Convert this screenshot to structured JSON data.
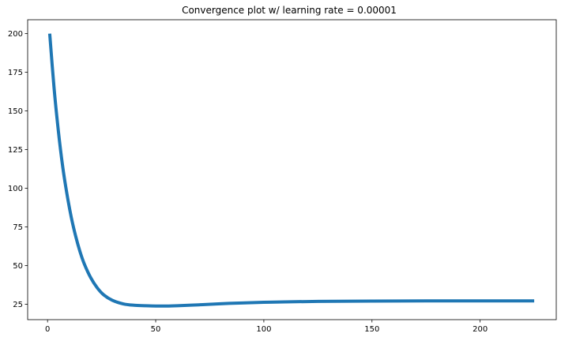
{
  "chart_data": {
    "type": "line",
    "title": "Convergence plot w/ learning rate = 0.00001",
    "xlabel": "",
    "ylabel": "",
    "xlim": [
      -9.2,
      235.2
    ],
    "ylim": [
      15.0,
      209.0
    ],
    "xticks": [
      0,
      50,
      100,
      150,
      200
    ],
    "yticks": [
      25,
      50,
      75,
      100,
      125,
      150,
      175,
      200
    ],
    "grid": false,
    "legend": "none",
    "series": [
      {
        "color": "#1f77b4",
        "x": [
          1,
          3,
          5,
          7,
          9,
          11,
          13,
          15,
          17,
          20,
          23,
          26,
          30,
          35,
          40,
          45,
          50,
          55,
          60,
          70,
          80,
          90,
          100,
          110,
          125,
          150,
          175,
          200,
          225
        ],
        "y": [
          200,
          165,
          137,
          114,
          96,
          81,
          69,
          59,
          51,
          42,
          35.5,
          31,
          27.5,
          25.2,
          24.3,
          24.0,
          23.8,
          23.8,
          24.0,
          24.6,
          25.3,
          25.8,
          26.2,
          26.5,
          26.8,
          27.0,
          27.1,
          27.1,
          27.1
        ]
      }
    ]
  }
}
